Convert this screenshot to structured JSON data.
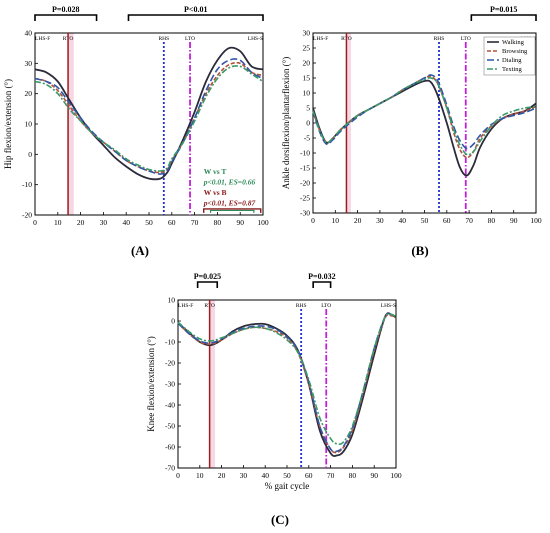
{
  "panel_labels": [
    "(A)",
    "(B)",
    "(C)"
  ],
  "colors": {
    "walking": "#2b2b3a",
    "browsing": "#b5523a",
    "dialing": "#2f57a8",
    "texting": "#3c9a6a",
    "rto_line": "#9b1c1c",
    "rto_band": "#f8d7e4",
    "rhs_line": "#1f2fd1",
    "lto_line": "#c020d8",
    "annotation_green": "#2e8b57",
    "annotation_red": "#8b1a1a"
  },
  "chart_data": [
    {
      "type": "line",
      "panel": "(A)",
      "ylabel": "Hip flexion/extension (°)",
      "xlabel": "",
      "xlim": [
        0,
        100
      ],
      "ylim": [
        -20,
        40
      ],
      "x_ticks": [
        "0",
        "10",
        "20",
        "30",
        "40",
        "50",
        "60",
        "70",
        "80",
        "90",
        "100"
      ],
      "y_ticks": [
        "40",
        "30",
        "20",
        "10",
        "0",
        "-10",
        "-20"
      ],
      "events": [
        {
          "label": "LHS-F",
          "x": 0,
          "line": false
        },
        {
          "label": "RTO",
          "x": 14.5,
          "line": true
        },
        {
          "label": "RHS",
          "x": 56.5,
          "line": true
        },
        {
          "label": "LTO",
          "x": 68,
          "line": true
        },
        {
          "label": "LHS-S",
          "x": 100,
          "line": false
        }
      ],
      "rto_band": [
        14.5,
        17
      ],
      "significance_bars": [
        {
          "label": "P=0.028",
          "x_start": 0,
          "x_end": 27
        },
        {
          "label": "P<0.01",
          "x_start": 41,
          "x_end": 100
        }
      ],
      "annotations": [
        {
          "text": "W vs T",
          "color": "green"
        },
        {
          "text": "p<0.01, ES=0.66",
          "color": "green"
        },
        {
          "text": "W vs B",
          "color": "red"
        },
        {
          "text": "p<0.01, ES=0.87",
          "color": "red"
        }
      ],
      "x": [
        0,
        5,
        10,
        15,
        20,
        25,
        30,
        35,
        40,
        45,
        50,
        55,
        58,
        60,
        65,
        70,
        75,
        80,
        85,
        90,
        95,
        100
      ],
      "series": [
        {
          "name": "Walking",
          "values": [
            28,
            27,
            24,
            18,
            12,
            7,
            3,
            -1,
            -4,
            -6.5,
            -8,
            -8,
            -6,
            -3,
            5,
            14,
            24,
            31,
            35,
            34,
            29,
            28
          ]
        },
        {
          "name": "Browsing",
          "values": [
            25,
            24,
            21,
            16,
            11,
            7,
            4,
            1,
            -2,
            -4,
            -5.5,
            -6,
            -5,
            -2,
            4,
            12,
            20,
            26,
            29.5,
            30,
            27,
            26
          ]
        },
        {
          "name": "Dialing",
          "values": [
            25,
            24,
            22,
            17,
            12,
            7.5,
            4,
            1,
            -2,
            -4,
            -5.5,
            -6.5,
            -5.5,
            -2.5,
            4,
            12,
            21,
            28,
            31,
            31,
            27,
            25
          ]
        },
        {
          "name": "Texting",
          "values": [
            24,
            23,
            20,
            15,
            11,
            7,
            4,
            1.5,
            -1.5,
            -3.5,
            -5,
            -5.5,
            -4.5,
            -1.5,
            4,
            11,
            19,
            25,
            28.5,
            29,
            26.5,
            24
          ]
        }
      ]
    },
    {
      "type": "line",
      "panel": "(B)",
      "ylabel": "Ankle dorsiflexion/plantarflexion (°)",
      "xlabel": "",
      "xlim": [
        0,
        100
      ],
      "ylim": [
        -30,
        30
      ],
      "x_ticks": [
        "0",
        "10",
        "20",
        "30",
        "40",
        "50",
        "60",
        "70",
        "80",
        "90",
        "100"
      ],
      "y_ticks": [
        "30",
        "25",
        "20",
        "15",
        "10",
        "5",
        "0",
        "-5",
        "-10",
        "-15",
        "-20",
        "-25",
        "-30"
      ],
      "events": [
        {
          "label": "LHS-F",
          "x": 0,
          "line": false
        },
        {
          "label": "RTO",
          "x": 15,
          "line": true
        },
        {
          "label": "RHS",
          "x": 56.5,
          "line": true
        },
        {
          "label": "LTO",
          "x": 68.5,
          "line": true
        },
        {
          "label": "LHS-S",
          "x": 100,
          "line": false
        }
      ],
      "rto_band": [
        15,
        17
      ],
      "significance_bars": [
        {
          "label": "P=0.015",
          "x_start": 71,
          "x_end": 100
        }
      ],
      "legend": [
        "Walking",
        "Browsing",
        "Dialing",
        "Texting"
      ],
      "legend_position": "top-right",
      "x": [
        0,
        3,
        6,
        9,
        12,
        15,
        20,
        25,
        30,
        35,
        40,
        45,
        50,
        53,
        56,
        60,
        63,
        66,
        69,
        72,
        75,
        80,
        85,
        90,
        95,
        100
      ],
      "series": [
        {
          "name": "Walking",
          "values": [
            5,
            -2,
            -6.5,
            -5,
            -2.5,
            -0.5,
            2.5,
            4.5,
            6.5,
            8.5,
            10.5,
            12.5,
            14,
            13.5,
            9,
            0,
            -8,
            -15,
            -17.5,
            -14,
            -8,
            -2,
            1.5,
            3,
            4,
            6.5
          ]
        },
        {
          "name": "Browsing",
          "values": [
            4,
            -2.5,
            -6.5,
            -5,
            -2.5,
            -0.5,
            2.5,
            4.5,
            6.5,
            8.5,
            11,
            13,
            15,
            15.5,
            13,
            5,
            -3,
            -9,
            -11.5,
            -9.5,
            -5,
            -1,
            1.5,
            3,
            4,
            5.5
          ]
        },
        {
          "name": "Dialing",
          "values": [
            4,
            -3,
            -7,
            -5.5,
            -3,
            -1,
            2,
            4.5,
            6.5,
            8.5,
            11,
            13,
            15,
            16,
            14,
            6,
            -1,
            -6,
            -8.5,
            -7,
            -4,
            -0.5,
            1.5,
            2.5,
            3.5,
            5
          ]
        },
        {
          "name": "Texting",
          "values": [
            4,
            -2.5,
            -6.5,
            -5,
            -2.5,
            -0.5,
            2.5,
            4.5,
            6.5,
            8.5,
            11,
            13,
            14.5,
            15,
            13,
            5,
            -2,
            -7.5,
            -10.5,
            -9.5,
            -6,
            -1,
            2.5,
            4,
            5,
            5.5
          ]
        }
      ]
    },
    {
      "type": "line",
      "panel": "(C)",
      "ylabel": "Knee flexion/extension (°)",
      "xlabel": "% gait cycle",
      "xlim": [
        0,
        100
      ],
      "ylim": [
        -70,
        10
      ],
      "x_ticks": [
        "0",
        "10",
        "20",
        "30",
        "40",
        "50",
        "60",
        "70",
        "80",
        "90",
        "100"
      ],
      "y_ticks": [
        "10",
        "0",
        "-10",
        "-20",
        "-30",
        "-40",
        "-50",
        "-60",
        "-70"
      ],
      "events": [
        {
          "label": "LHS-F",
          "x": 0,
          "line": false
        },
        {
          "label": "RTO",
          "x": 14.5,
          "line": true
        },
        {
          "label": "RHS",
          "x": 56.5,
          "line": true
        },
        {
          "label": "LTO",
          "x": 68,
          "line": true
        },
        {
          "label": "LHS-S",
          "x": 100,
          "line": false
        }
      ],
      "rto_band": [
        14.5,
        17
      ],
      "significance_bars": [
        {
          "label": "P=0.025",
          "x_start": 9,
          "x_end": 18
        },
        {
          "label": "P=0.032",
          "x_start": 62,
          "x_end": 70
        }
      ],
      "x": [
        0,
        5,
        10,
        15,
        20,
        25,
        30,
        35,
        40,
        45,
        50,
        55,
        60,
        65,
        70,
        73,
        76,
        80,
        85,
        90,
        95,
        98,
        100
      ],
      "series": [
        {
          "name": "Walking",
          "values": [
            -1,
            -5.5,
            -10,
            -11.5,
            -9,
            -5,
            -2.5,
            -1.5,
            -1.5,
            -3.5,
            -7,
            -14,
            -30,
            -52,
            -63,
            -64,
            -62,
            -54,
            -36,
            -16,
            2,
            3,
            1.5
          ]
        },
        {
          "name": "Browsing",
          "values": [
            -1,
            -6,
            -10,
            -11,
            -9,
            -6,
            -4,
            -3,
            -3.5,
            -5,
            -8,
            -15,
            -30,
            -50,
            -61,
            -62.5,
            -60,
            -52,
            -34,
            -14,
            1.5,
            2.5,
            1.5
          ]
        },
        {
          "name": "Dialing",
          "values": [
            -1,
            -6,
            -9.5,
            -10.5,
            -8.5,
            -5.5,
            -3.5,
            -2.5,
            -2.5,
            -4,
            -7.5,
            -14,
            -29,
            -50,
            -61,
            -62,
            -59.5,
            -51,
            -33,
            -13,
            2,
            3,
            2
          ]
        },
        {
          "name": "Texting",
          "values": [
            -0.5,
            -5,
            -8.5,
            -9.5,
            -8,
            -6,
            -4,
            -3,
            -3.5,
            -5.5,
            -9,
            -15,
            -28,
            -46,
            -56,
            -58.5,
            -57.5,
            -50,
            -33,
            -13,
            2,
            3,
            2
          ]
        }
      ]
    }
  ]
}
